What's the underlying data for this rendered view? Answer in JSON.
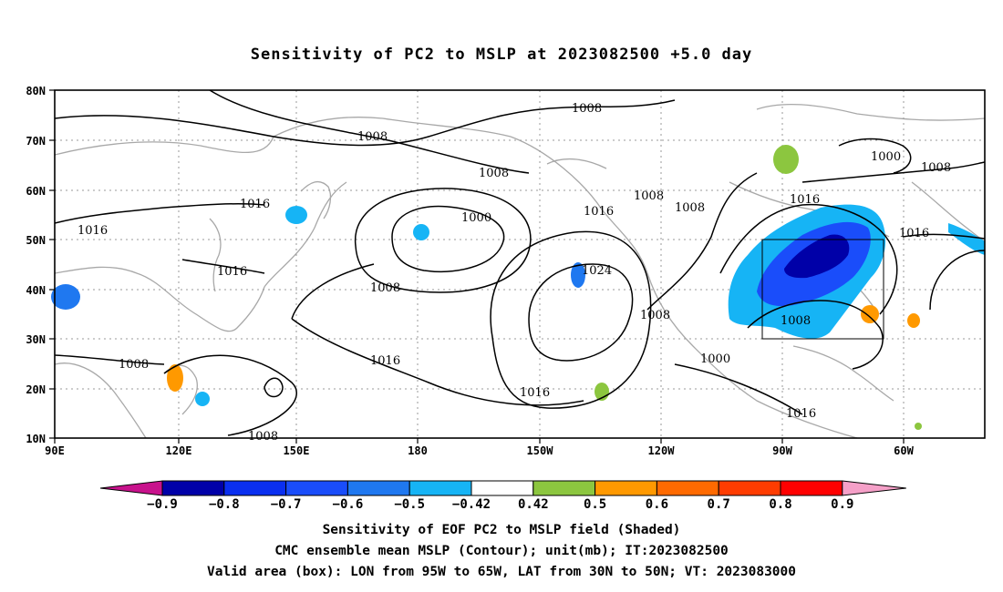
{
  "title": "Sensitivity of PC2 to MSLP at 2023082500 +5.0 day",
  "lat_ticks": [
    "80N",
    "70N",
    "60N",
    "50N",
    "40N",
    "30N",
    "20N",
    "10N"
  ],
  "lon_ticks": [
    "90E",
    "120E",
    "150E",
    "180",
    "150W",
    "120W",
    "90W",
    "60W"
  ],
  "domain": {
    "lon_range": [
      90,
      305
    ],
    "lat_range": [
      10,
      80
    ]
  },
  "valid_box": {
    "lon": [
      "95W",
      "65W"
    ],
    "lat": [
      "30N",
      "50N"
    ]
  },
  "contour_labels": [
    "1008",
    "1008",
    "1008",
    "1000",
    "1008",
    "1016",
    "1016",
    "1008",
    "1016",
    "1016",
    "1016",
    "1000",
    "1016",
    "1024",
    "1008",
    "1016",
    "1008",
    "1008",
    "1016",
    "1000",
    "1008",
    "1008",
    "1016",
    "1008",
    "1008",
    "1008"
  ],
  "colorbar": {
    "labels": [
      "-0.9",
      "-0.8",
      "-0.7",
      "-0.6",
      "-0.5",
      "-0.42",
      "0.42",
      "0.5",
      "0.6",
      "0.7",
      "0.8",
      "0.9"
    ],
    "colors": [
      "#0000a8",
      "#0a2ff0",
      "#1a4dfa",
      "#1f78f0",
      "#16b4f5",
      "#ffffff",
      "#8cc63f",
      "#ff9900",
      "#ff6a00",
      "#ff3c00",
      "#ff0000"
    ],
    "low_arrow_color": "#c8128c",
    "high_arrow_color": "#f5a0c8"
  },
  "captions": [
    "Sensitivity of EOF PC2 to MSLP field (Shaded)",
    "CMC ensemble mean MSLP (Contour); unit(mb); IT:2023082500",
    "Valid area (box): LON from 95W to 65W, LAT from 30N to 50N; VT: 2023083000"
  ]
}
